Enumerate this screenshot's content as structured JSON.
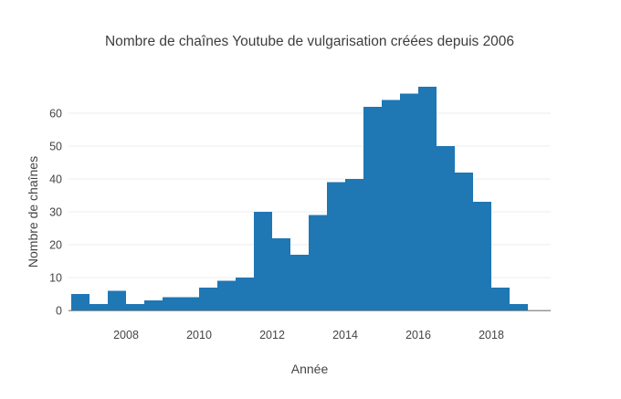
{
  "chart_data": {
    "type": "bar",
    "subtype": "histogram",
    "title": "Nombre de chaînes Youtube de vulgarisation créées depuis 2006",
    "xlabel": "Année",
    "ylabel": "Nombre de chaînes",
    "bin_width_years": 0.5,
    "bin_starts": [
      2006.5,
      2007.0,
      2007.5,
      2008.0,
      2008.5,
      2009.0,
      2009.5,
      2010.0,
      2010.5,
      2011.0,
      2011.5,
      2012.0,
      2012.5,
      2013.0,
      2013.5,
      2014.0,
      2014.5,
      2015.0,
      2015.5,
      2016.0,
      2016.5,
      2017.0,
      2017.5,
      2018.0,
      2018.5
    ],
    "values": [
      5,
      2,
      6,
      2,
      3,
      4,
      4,
      7,
      9,
      10,
      30,
      22,
      17,
      29,
      39,
      40,
      62,
      64,
      66,
      68,
      50,
      42,
      33,
      7,
      2
    ],
    "x_ticks": [
      "2008",
      "2010",
      "2012",
      "2014",
      "2016",
      "2018"
    ],
    "x_tick_values": [
      2008,
      2010,
      2012,
      2014,
      2016,
      2018
    ],
    "y_ticks": [
      "0",
      "10",
      "20",
      "30",
      "40",
      "50",
      "60"
    ],
    "y_tick_values": [
      0,
      10,
      20,
      30,
      40,
      50,
      60
    ],
    "x_range": [
      2006.425,
      2019.625
    ],
    "y_range": [
      0,
      70
    ],
    "grid": true,
    "legend_position": "none",
    "colors": {
      "bar": "#1f77b4",
      "grid": "#ececec",
      "zeroline": "#999999",
      "text": "#444444",
      "title": "#3d3d3d",
      "background": "#ffffff"
    }
  }
}
